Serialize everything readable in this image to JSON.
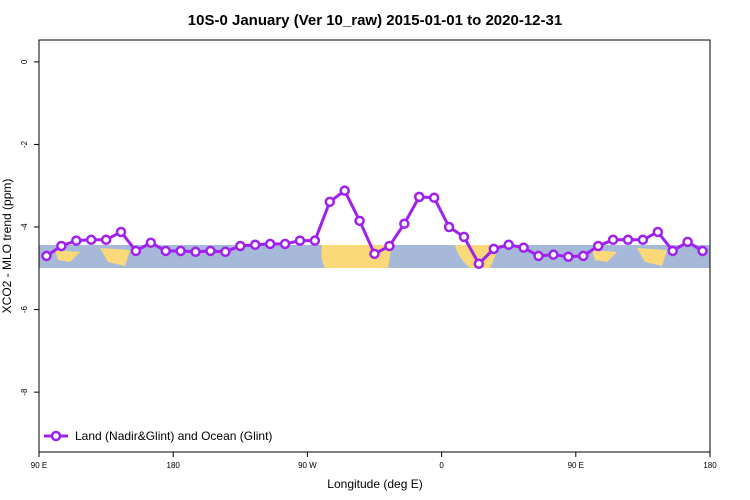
{
  "chart_data": {
    "type": "line",
    "title": "10S-0 January (Ver 10_raw)   2015-01-01 to 2020-12-31",
    "x_label": "Longitude (deg E)",
    "y_label": "XCO2 - MLO trend (ppm)",
    "xlim": [
      90,
      540
    ],
    "ylim": [
      -9.45,
      0.53
    ],
    "xticks": [
      {
        "value": 90,
        "label": "90 E"
      },
      {
        "value": 180,
        "label": "180"
      },
      {
        "value": 270,
        "label": "90 W"
      },
      {
        "value": 360,
        "label": "0"
      },
      {
        "value": 450,
        "label": "90 E"
      },
      {
        "value": 540,
        "label": "180"
      }
    ],
    "yticks": [
      0,
      -2,
      -4,
      -6,
      -8
    ],
    "legend": "bottom-left",
    "x": [
      95,
      105,
      115,
      125,
      135,
      145,
      155,
      165,
      175,
      185,
      195,
      205,
      215,
      225,
      235,
      245,
      255,
      265,
      275,
      285,
      295,
      305,
      315,
      325,
      335,
      345,
      355,
      365,
      375,
      385,
      395,
      405,
      415,
      425,
      435,
      445,
      455,
      465,
      475,
      485,
      495,
      505,
      515,
      525,
      535
    ],
    "series": [
      {
        "name": "Land (Nadir&Glint) and Ocean (Glint)",
        "color": "#a020f0",
        "values": [
          -4.7,
          -4.46,
          -4.33,
          -4.31,
          -4.31,
          -4.12,
          -4.58,
          -4.38,
          -4.58,
          -4.58,
          -4.6,
          -4.58,
          -4.6,
          -4.46,
          -4.43,
          -4.41,
          -4.41,
          -4.33,
          -4.33,
          -3.39,
          -3.12,
          -3.85,
          -4.65,
          -4.46,
          -3.92,
          -3.27,
          -3.29,
          -4.0,
          -4.24,
          -4.89,
          -4.53,
          -4.43,
          -4.5,
          -4.7,
          -4.67,
          -4.72,
          -4.7,
          -4.46,
          -4.31,
          -4.31,
          -4.31,
          -4.12,
          -4.58,
          -4.36,
          -4.58
        ]
      }
    ]
  }
}
